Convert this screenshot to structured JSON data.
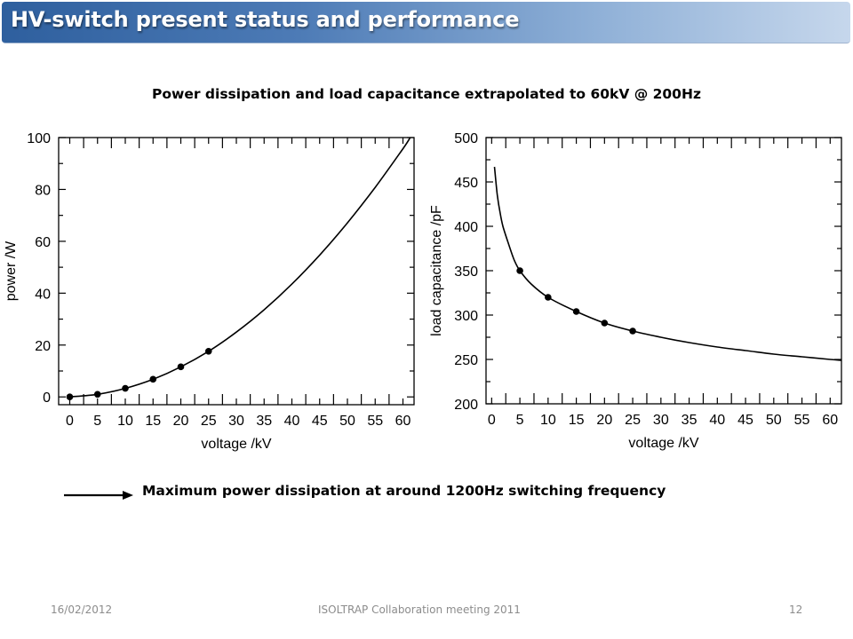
{
  "slide": {
    "title": "HV-switch present status and performance",
    "subtitle": "Power dissipation and load capacitance extrapolated to 60kV @ 200Hz",
    "conclusion": "Maximum power dissipation at around 1200Hz switching frequency",
    "footer": {
      "date": "16/02/2012",
      "event": "ISOLTRAP Collaboration meeting 2011",
      "page": "12"
    }
  },
  "chart_data": [
    {
      "type": "line",
      "xlabel": "voltage /kV",
      "ylabel": "power /W",
      "xlim": [
        -2,
        62
      ],
      "ylim": [
        -3,
        100
      ],
      "xticks": [
        0,
        5,
        10,
        15,
        20,
        25,
        30,
        35,
        40,
        45,
        50,
        55,
        60
      ],
      "yticks": [
        0,
        20,
        40,
        60,
        80,
        100
      ],
      "grid": false,
      "series": [
        {
          "kind": "curve",
          "x": [
            0,
            5,
            10,
            15,
            20,
            25,
            30,
            35,
            40,
            45,
            50,
            55,
            60,
            61.3
          ],
          "y": [
            0,
            1,
            3.3,
            6.8,
            11.6,
            17.6,
            25,
            33.6,
            43.5,
            54.7,
            67.1,
            80.8,
            95.7,
            100
          ]
        },
        {
          "kind": "points",
          "x": [
            0,
            5,
            10,
            15,
            20,
            25
          ],
          "y": [
            0,
            1,
            3.3,
            6.8,
            11.6,
            17.6
          ]
        }
      ]
    },
    {
      "type": "line",
      "xlabel": "voltage /kV",
      "ylabel": "load capacitance /pF",
      "xlim": [
        -1,
        62
      ],
      "ylim": [
        200,
        500
      ],
      "xticks": [
        0,
        5,
        10,
        15,
        20,
        25,
        30,
        35,
        40,
        45,
        50,
        55,
        60
      ],
      "yticks": [
        200,
        250,
        300,
        350,
        400,
        450,
        500
      ],
      "grid": false,
      "series": [
        {
          "kind": "curve",
          "x": [
            0.5,
            1,
            1.5,
            2,
            3,
            4,
            5,
            7,
            10,
            15,
            20,
            25,
            30,
            35,
            40,
            45,
            50,
            55,
            60,
            62
          ],
          "y": [
            467,
            435,
            415,
            400,
            380,
            362,
            350,
            335,
            320,
            304,
            291,
            282,
            275,
            269,
            264,
            260,
            256,
            253,
            250,
            249
          ]
        },
        {
          "kind": "points",
          "x": [
            5,
            10,
            15,
            20,
            25
          ],
          "y": [
            350,
            320,
            304,
            291,
            282
          ]
        }
      ]
    }
  ]
}
